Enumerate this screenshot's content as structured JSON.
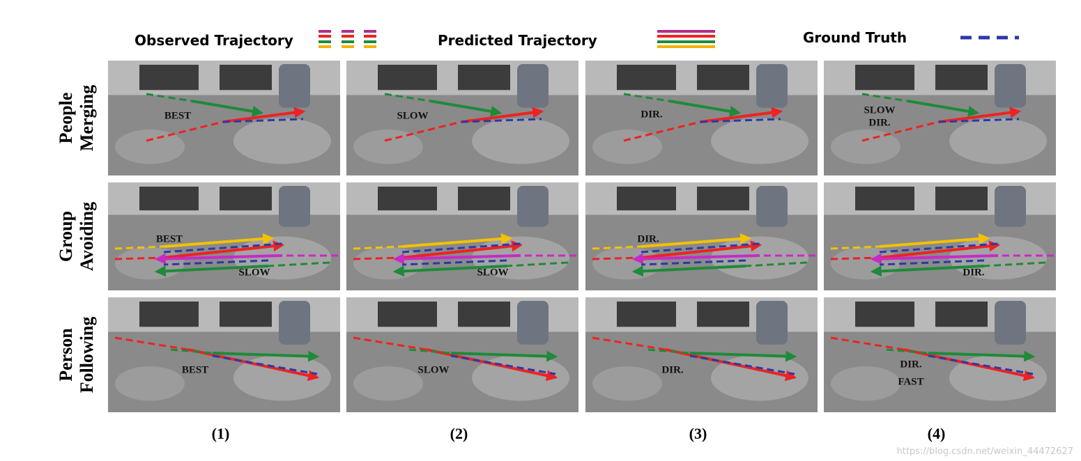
{
  "legend": [
    {
      "label": "Observed Trajectory"
    },
    {
      "label": "Predicted Trajectory"
    },
    {
      "label": "Ground Truth"
    }
  ],
  "rows": [
    {
      "label": [
        "People",
        "Merging"
      ],
      "panels": [
        {
          "tags": [
            "BEST"
          ]
        },
        {
          "tags": [
            "SLOW"
          ]
        },
        {
          "tags": [
            "DIR."
          ]
        },
        {
          "tags": [
            "SLOW",
            "DIR."
          ]
        }
      ]
    },
    {
      "label": [
        "Group",
        "Avoiding"
      ],
      "panels": [
        {
          "tags": [
            "BEST",
            "SLOW"
          ]
        },
        {
          "tags": [
            "SLOW"
          ]
        },
        {
          "tags": [
            "DIR."
          ]
        },
        {
          "tags": [
            "DIR."
          ]
        }
      ]
    },
    {
      "label": [
        "Person",
        "Following"
      ],
      "panels": [
        {
          "tags": [
            "BEST"
          ]
        },
        {
          "tags": [
            "SLOW"
          ]
        },
        {
          "tags": [
            "DIR."
          ]
        },
        {
          "tags": [
            "DIR.",
            "FAST"
          ]
        }
      ]
    }
  ],
  "columns": [
    "(1)",
    "(2)",
    "(3)",
    "(4)"
  ],
  "watermark": "https://blog.csdn.net/weixin_44472627"
}
